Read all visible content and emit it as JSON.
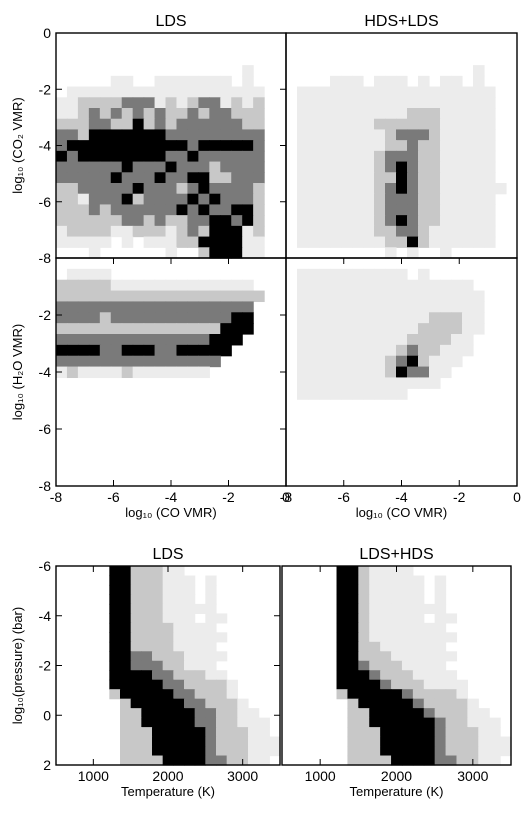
{
  "palette": {
    "frame": "#000000",
    "levels": [
      "#ffffff",
      "#ececec",
      "#c8c8c8",
      "#7a7a7a",
      "#000000"
    ]
  },
  "chart_data": [
    {
      "type": "heatmap",
      "title": "LDS",
      "xlabel": "",
      "ylabel": "log₁₀ (CO₂ VMR)",
      "xlim": [
        -8,
        0
      ],
      "ylim": [
        -8,
        0
      ],
      "xticks": [],
      "yticks": [
        "0",
        "-2",
        "-4",
        "-6",
        "-8"
      ],
      "grid": "21x21",
      "rows": [
        "000000000000000000000",
        "000000000000000000000",
        "000000000000000000000",
        "000000000000000001000",
        "000001100111111101000",
        "011111111111111111100",
        "112222333121233121200",
        "112323232322323322200",
        "222332242323333332200",
        "332444444433333333300",
        "344444444444344444300",
        "434444444433433333300",
        "333333433343332333300",
        "333334333433442233300",
        "223333343332343333200",
        "221333423333434333200",
        "222323333334343344200",
        "222222332322334434200",
        "122221122212324441200",
        "111110101112244441100",
        "000100000010024441100"
      ]
    },
    {
      "type": "heatmap",
      "title": "HDS+LDS",
      "xlabel": "",
      "ylabel": "",
      "xlim": [
        -8,
        0
      ],
      "ylim": [
        -8,
        0
      ],
      "xticks": [],
      "yticks": [],
      "grid": "21x21",
      "rows": [
        "000000000000000000000",
        "000000000000000000000",
        "000000000000000000000",
        "000000000000000001000",
        "000011101110101101000",
        "011111111111111111100",
        "011111111111111111100",
        "011111111112221111100",
        "011111112222221111100",
        "011111111233321111100",
        "011111111223221111100",
        "011111112333221111100",
        "011111112343221111100",
        "011111112243221111100",
        "011111112343221111110",
        "011111112333221111100",
        "011111112333221111100",
        "011111112343221111100",
        "011111112233211111100",
        "011111111224211111100",
        "000000000101001000000"
      ]
    },
    {
      "type": "heatmap",
      "title": "",
      "xlabel": "log₁₀ (CO VMR)",
      "ylabel": "log₁₀ (H₂O VMR)",
      "xlim": [
        -8,
        0
      ],
      "ylim": [
        -8,
        0
      ],
      "xticks": [
        "-8",
        "-6",
        "-4",
        "-2",
        "0"
      ],
      "yticks": [
        "-2",
        "-4",
        "-6",
        "-8"
      ],
      "grid": "21x21",
      "rows": [
        "000000000000000000000",
        "011110000000000000000",
        "222221111111111111000",
        "222222222222222222200",
        "333333333333333333000",
        "333323333333333344000",
        "222222222222222444000",
        "333333333333334440000",
        "444433444334444400000",
        "333333333333333000000",
        "121111211111110000000",
        "000000000000000000000",
        "000000000000000000000",
        "000000000000000000000",
        "000000000000000000000",
        "000000000000000000000",
        "000000000000000000000",
        "000000000000000000000",
        "000000000000000000000",
        "000000000000000000000",
        "000000000000000000000"
      ]
    },
    {
      "type": "heatmap",
      "title": "",
      "xlabel": "log₁₀ (CO VMR)",
      "ylabel": "",
      "xlim": [
        -8,
        0
      ],
      "ylim": [
        -8,
        0
      ],
      "xticks": [
        "-8",
        "-6",
        "-4",
        "-2",
        "0"
      ],
      "yticks": [],
      "grid": "21x21",
      "rows": [
        "000000000000000000000",
        "011111111110100000000",
        "011111111111111110000",
        "011111111111111111000",
        "011111111111111111000",
        "011111111111122211000",
        "011111111111222211000",
        "011111111112222110000",
        "011111111123221110000",
        "011111111234211100000",
        "011111111243311000000",
        "011111111111110000000",
        "011111111110000000000",
        "000000000000000000000",
        "000000000000000000000",
        "000000000000000000000",
        "000000000000000000000",
        "000000000000000000000",
        "000000000000000000000",
        "000000000000000000000",
        "000000000000000000000"
      ]
    },
    {
      "type": "heatmap",
      "title": "LDS",
      "xlabel": "Temperature (K)",
      "ylabel": "log₁₀(pressure) (bar)",
      "xlim": [
        500,
        3500
      ],
      "ylim": [
        -6,
        2
      ],
      "xticks": [
        "1000",
        "2000",
        "3000"
      ],
      "yticks": [
        "-6",
        "-4",
        "-2",
        "0",
        "2"
      ],
      "grid": "21x21",
      "rows": [
        "000004422211000000000",
        "000004422211101000000",
        "000004422211101000000",
        "000004422211101000000",
        "000004422211111000000",
        "000004422211101100000",
        "000004422221111000000",
        "000004422221111100000",
        "000004422221111000000",
        "000004433222111100000",
        "000004433322111000000",
        "000004444332221100000",
        "000004444433222210000",
        "000002444443322210000",
        "000000244444332221000",
        "000000224444433221100",
        "000000224444433221110",
        "000000222444443222110",
        "000000222444443222111",
        "000000222444443222111",
        "000000222244443322110"
      ]
    },
    {
      "type": "heatmap",
      "title": "LDS+HDS",
      "xlabel": "Temperature (K)",
      "ylabel": "",
      "xlim": [
        500,
        3500
      ],
      "ylim": [
        -6,
        2
      ],
      "xticks": [
        "1000",
        "2000",
        "3000"
      ],
      "yticks": [],
      "grid": "21x21",
      "rows": [
        "000004421111000000000",
        "000004421111101000000",
        "000004421111101000000",
        "000004421111101000000",
        "000004421111111000000",
        "000004421111101100000",
        "000004421111111000000",
        "000004421111111100000",
        "000004422111111000000",
        "000004422211111100000",
        "000004432221111000000",
        "000004443222111100000",
        "000004444322211110000",
        "000002444443222210000",
        "000000244444322221000",
        "000000224444432221100",
        "000000224444443221110",
        "000000222444443222110",
        "000000222444443222111",
        "000000222444443222111",
        "000000222244443322110"
      ]
    }
  ]
}
